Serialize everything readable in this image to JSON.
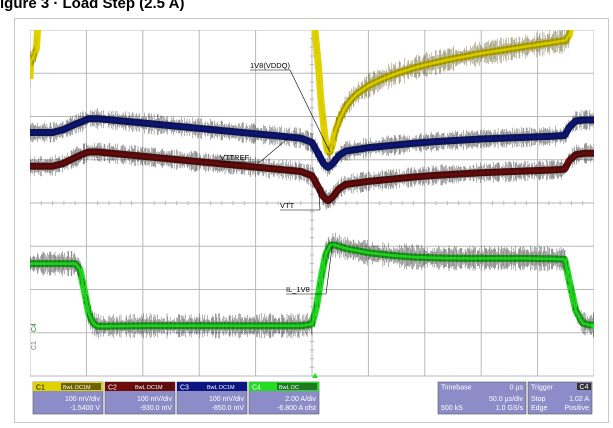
{
  "page": {
    "title": "igure 3 · Load Step (2.5 A)"
  },
  "scope": {
    "background": "#ffffff",
    "grid_color": "#b8b8b8",
    "channels": [
      {
        "id": "C1",
        "label": "C1",
        "color": "#e0d200",
        "scale": "100 mV/div",
        "offset": "-1.5400 V",
        "mode_badge": "BwL DC1M"
      },
      {
        "id": "C2",
        "label": "C2",
        "color": "#6e0b0b",
        "scale": "100 mV/div",
        "offset": "-930.0 mV",
        "mode_badge": "BwL DC1M"
      },
      {
        "id": "C3",
        "label": "C3",
        "color": "#0c1680",
        "scale": "100 mV/div",
        "offset": "-850.0 mV",
        "mode_badge": "BwL DC1M"
      },
      {
        "id": "C4",
        "label": "C4",
        "color": "#22dd22",
        "scale": "2.00 A/div",
        "offset": "-6.800 A ofst",
        "mode_badge": "BwL DC"
      }
    ],
    "timebase": {
      "label": "Timebase",
      "delay": "0 µs",
      "scale": "50.0 µs/div",
      "samples": "500 kS",
      "rate": "1.0 GS/s"
    },
    "trigger": {
      "label": "Trigger",
      "channel": "C4",
      "mode": "Stop",
      "level": "1.02 A",
      "type": "Edge",
      "slope": "Positive"
    },
    "markers": {
      "left_ch": "C4",
      "left_extra": "C1"
    }
  },
  "chart_data": {
    "type": "line",
    "title": "",
    "xlabel": "",
    "ylabel": "",
    "x_divisions": 10,
    "y_divisions": 8,
    "time_per_div_us": 50,
    "grid": true,
    "series": [
      {
        "name": "1V8(VDDQ)",
        "channel": "C1",
        "points": [
          [
            0,
            2.87
          ],
          [
            0.05,
            3.02
          ],
          [
            0.1,
            3.05
          ],
          [
            0.15,
            3.05
          ],
          [
            0.2,
            3.05
          ],
          [
            0.5,
            3.3
          ],
          [
            1.0,
            3.3
          ],
          [
            2.0,
            3.31
          ],
          [
            3.0,
            3.38
          ],
          [
            4.0,
            3.46
          ],
          [
            5.0,
            3.52
          ],
          [
            5.5,
            3.55
          ],
          [
            6.0,
            3.68
          ],
          [
            6.5,
            3.88
          ],
          [
            6.82,
            4.15
          ],
          [
            7.0,
            4.22
          ],
          [
            7.5,
            4.33
          ],
          [
            8.5,
            4.5
          ],
          [
            9.5,
            4.7
          ],
          [
            10.5,
            4.82
          ],
          [
            11.5,
            4.9
          ],
          [
            12.5,
            5.0
          ],
          [
            13.5,
            5.07
          ],
          [
            14.5,
            5.12
          ],
          [
            15.0,
            5.04
          ],
          [
            15.5,
            4.86
          ],
          [
            16.0,
            4.95
          ],
          [
            17.0,
            5.3
          ],
          [
            18.0,
            5.55
          ],
          [
            19.0,
            5.9
          ],
          [
            20.0,
            6.05
          ],
          [
            21.5,
            6.28
          ],
          [
            22.8,
            6.4
          ],
          [
            24.0,
            6.48
          ],
          [
            24.9,
            6.5
          ],
          [
            25.0,
            6.5
          ],
          [
            25.5,
            6.5
          ],
          [
            26.0,
            6.52
          ],
          [
            27.0,
            6.55
          ],
          [
            28.0,
            6.6
          ],
          [
            29.0,
            6.6
          ],
          [
            30.0,
            6.6
          ],
          [
            32.0,
            6.6
          ],
          [
            33.5,
            6.6
          ],
          [
            35.0,
            6.62
          ],
          [
            36.5,
            6.62
          ],
          [
            38.0,
            6.62
          ],
          [
            40.0,
            6.63
          ],
          [
            42.5,
            6.63
          ],
          [
            45.0,
            6.65
          ],
          [
            47.5,
            6.65
          ],
          [
            50.0,
            6.63
          ],
          [
            52.0,
            6.58
          ],
          [
            54.0,
            6.54
          ],
          [
            56.0,
            6.43
          ],
          [
            58.0,
            6.28
          ],
          [
            60.0,
            6.07
          ],
          [
            62.0,
            5.84
          ],
          [
            64.0,
            5.62
          ],
          [
            66.0,
            5.42
          ],
          [
            68.0,
            5.32
          ],
          [
            70.0,
            5.28
          ],
          [
            72.0,
            5.24
          ],
          [
            74.0,
            5.18
          ],
          [
            76.0,
            5.08
          ],
          [
            78.0,
            4.99
          ],
          [
            80.0,
            4.92
          ],
          [
            82.0,
            4.89
          ],
          [
            84.0,
            4.88
          ],
          [
            86.0,
            4.86
          ],
          [
            88.0,
            4.86
          ],
          [
            90.0,
            4.86
          ],
          [
            95.0,
            4.88
          ],
          [
            100.0,
            4.89
          ],
          [
            110.0,
            4.91
          ],
          [
            120.0,
            4.93
          ],
          [
            130.0,
            4.95
          ],
          [
            140.0,
            4.97
          ],
          [
            150.0,
            4.99
          ],
          [
            160.0,
            5.01
          ],
          [
            170.0,
            5.03
          ],
          [
            180.0,
            5.06
          ],
          [
            190.0,
            5.09
          ],
          [
            200.0,
            5.13
          ],
          [
            210.0,
            5.17
          ],
          [
            220.0,
            5.2
          ],
          [
            230.0,
            5.22
          ],
          [
            240.0,
            5.23
          ],
          [
            248.0,
            5.24
          ],
          [
            250.0,
            4.7
          ],
          [
            252.0,
            4.17
          ],
          [
            254.0,
            3.63
          ],
          [
            256.0,
            3.08
          ],
          [
            258.0,
            2.35
          ],
          [
            260.0,
            1.88
          ],
          [
            262.0,
            1.42
          ],
          [
            264.0,
            1.18
          ],
          [
            266.0,
            1.17
          ],
          [
            268.0,
            1.33
          ],
          [
            270.0,
            1.6
          ],
          [
            275.0,
            1.98
          ],
          [
            280.0,
            2.23
          ],
          [
            285.0,
            2.4
          ],
          [
            290.0,
            2.53
          ],
          [
            300.0,
            2.71
          ],
          [
            310.0,
            2.84
          ],
          [
            320.0,
            2.95
          ],
          [
            330.0,
            3.04
          ],
          [
            340.0,
            3.12
          ],
          [
            350.0,
            3.19
          ],
          [
            360.0,
            3.25
          ],
          [
            370.0,
            3.31
          ],
          [
            380.0,
            3.36
          ],
          [
            390.0,
            3.41
          ],
          [
            400.0,
            3.46
          ],
          [
            410.0,
            3.5
          ],
          [
            420.0,
            3.54
          ],
          [
            430.0,
            3.58
          ],
          [
            440.0,
            3.62
          ],
          [
            450.0,
            3.66
          ],
          [
            460.0,
            3.7
          ],
          [
            470.0,
            3.74
          ],
          [
            475.0,
            3.76
          ],
          [
            478.0,
            3.88
          ],
          [
            480.0,
            4.13
          ],
          [
            482.0,
            4.33
          ],
          [
            484.0,
            4.5
          ],
          [
            486.0,
            4.6
          ],
          [
            488.0,
            4.66
          ],
          [
            492.0,
            4.69
          ],
          [
            500.0,
            4.7
          ]
        ]
      },
      {
        "name": "VTTREF",
        "channel": "C3",
        "points": [
          [
            0,
            1.63
          ],
          [
            20,
            1.63
          ],
          [
            30,
            1.7
          ],
          [
            40,
            1.82
          ],
          [
            46,
            1.88
          ],
          [
            52,
            1.95
          ],
          [
            60,
            1.95
          ],
          [
            80,
            1.9
          ],
          [
            100,
            1.85
          ],
          [
            120,
            1.8
          ],
          [
            140,
            1.75
          ],
          [
            160,
            1.7
          ],
          [
            180,
            1.65
          ],
          [
            200,
            1.6
          ],
          [
            220,
            1.55
          ],
          [
            240,
            1.5
          ],
          [
            250,
            1.4
          ],
          [
            256,
            1.12
          ],
          [
            260,
            0.92
          ],
          [
            264,
            0.82
          ],
          [
            268,
            0.9
          ],
          [
            274,
            1.1
          ],
          [
            280,
            1.2
          ],
          [
            300,
            1.28
          ],
          [
            320,
            1.33
          ],
          [
            340,
            1.38
          ],
          [
            360,
            1.42
          ],
          [
            380,
            1.45
          ],
          [
            400,
            1.48
          ],
          [
            420,
            1.5
          ],
          [
            440,
            1.52
          ],
          [
            460,
            1.54
          ],
          [
            474,
            1.56
          ],
          [
            478,
            1.75
          ],
          [
            484,
            1.9
          ],
          [
            492,
            1.92
          ],
          [
            500,
            1.92
          ]
        ]
      },
      {
        "name": "VTT",
        "channel": "C2",
        "points": [
          [
            0,
            0.85
          ],
          [
            20,
            0.85
          ],
          [
            30,
            0.92
          ],
          [
            40,
            1.05
          ],
          [
            46,
            1.12
          ],
          [
            52,
            1.18
          ],
          [
            60,
            1.18
          ],
          [
            80,
            1.13
          ],
          [
            100,
            1.08
          ],
          [
            120,
            1.03
          ],
          [
            140,
            0.98
          ],
          [
            160,
            0.93
          ],
          [
            180,
            0.88
          ],
          [
            200,
            0.83
          ],
          [
            220,
            0.78
          ],
          [
            240,
            0.73
          ],
          [
            250,
            0.63
          ],
          [
            256,
            0.35
          ],
          [
            260,
            0.15
          ],
          [
            264,
            0.05
          ],
          [
            268,
            0.13
          ],
          [
            274,
            0.33
          ],
          [
            280,
            0.43
          ],
          [
            300,
            0.5
          ],
          [
            320,
            0.55
          ],
          [
            340,
            0.6
          ],
          [
            360,
            0.64
          ],
          [
            380,
            0.67
          ],
          [
            400,
            0.7
          ],
          [
            420,
            0.72
          ],
          [
            440,
            0.74
          ],
          [
            460,
            0.76
          ],
          [
            474,
            0.78
          ],
          [
            478,
            0.98
          ],
          [
            484,
            1.12
          ],
          [
            492,
            1.15
          ],
          [
            500,
            1.15
          ]
        ]
      },
      {
        "name": "IL_1V8",
        "channel": "C4",
        "points": [
          [
            0,
            -1.4
          ],
          [
            40,
            -1.4
          ],
          [
            44,
            -1.52
          ],
          [
            48,
            -2.0
          ],
          [
            52,
            -2.55
          ],
          [
            56,
            -2.78
          ],
          [
            60,
            -2.85
          ],
          [
            100,
            -2.84
          ],
          [
            150,
            -2.84
          ],
          [
            200,
            -2.84
          ],
          [
            240,
            -2.84
          ],
          [
            250,
            -2.8
          ],
          [
            254,
            -2.4
          ],
          [
            258,
            -1.75
          ],
          [
            262,
            -1.2
          ],
          [
            266,
            -0.98
          ],
          [
            270,
            -0.97
          ],
          [
            280,
            -1.05
          ],
          [
            300,
            -1.15
          ],
          [
            320,
            -1.21
          ],
          [
            340,
            -1.25
          ],
          [
            360,
            -1.27
          ],
          [
            380,
            -1.28
          ],
          [
            400,
            -1.28
          ],
          [
            420,
            -1.28
          ],
          [
            440,
            -1.28
          ],
          [
            460,
            -1.29
          ],
          [
            474,
            -1.3
          ],
          [
            478,
            -1.8
          ],
          [
            484,
            -2.5
          ],
          [
            490,
            -2.78
          ],
          [
            496,
            -2.82
          ],
          [
            500,
            -2.82
          ]
        ]
      }
    ],
    "annotations": [
      {
        "text": "1V8(VDDQ)",
        "series": "1V8(VDDQ)"
      },
      {
        "text": "VTTREF",
        "series": "VTTREF"
      },
      {
        "text": "VTT",
        "series": "VTT"
      },
      {
        "text": "IL_1V8",
        "series": "IL_1V8"
      }
    ]
  }
}
